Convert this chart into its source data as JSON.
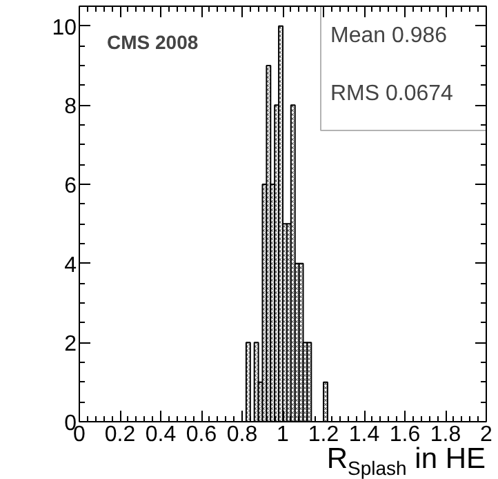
{
  "chart_data": {
    "type": "histogram",
    "bins": [
      0.82,
      0.84,
      0.86,
      0.88,
      0.9,
      0.92,
      0.94,
      0.96,
      0.98,
      1.0,
      1.02,
      1.04,
      1.06,
      1.08,
      1.1,
      1.12,
      1.14,
      1.16,
      1.18,
      1.2,
      1.22
    ],
    "values": [
      2,
      0,
      2,
      1,
      6,
      9,
      6,
      8,
      10,
      5,
      5,
      8,
      4,
      4,
      2,
      2,
      0,
      0,
      0,
      1
    ],
    "color": "#000000",
    "xlabel": "R$_{Splash}$ in HE",
    "xlim": [
      0,
      2
    ],
    "xticks": [
      0,
      0.2,
      0.4,
      0.6,
      0.8,
      1,
      1.2,
      1.4,
      1.6,
      1.8,
      2
    ],
    "ylim": [
      0,
      10.5
    ],
    "yticks": [
      0,
      2,
      4,
      6,
      8,
      10
    ],
    "annotations": [
      "CMS 2008",
      "Mean    0.986",
      "RMS   0.0674"
    ],
    "grid": false
  }
}
